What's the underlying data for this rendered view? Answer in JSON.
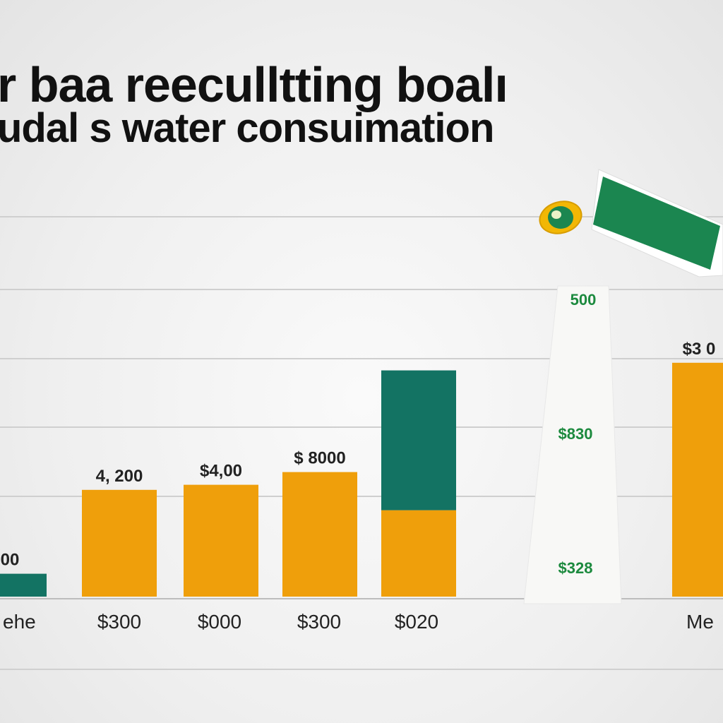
{
  "title": {
    "line1": "r baa reeculltting boalı",
    "line2": "udal s water consuimation"
  },
  "colors": {
    "primary": "#ef9f0b",
    "secondary": "#137363",
    "accent_green": "#1b8650",
    "label_green": "#1c8a3e",
    "grid": "#cfcfcf",
    "text": "#222222"
  },
  "icons": {
    "marker": "leaf-badge-icon",
    "flag": "green-flag-icon"
  },
  "chart_data": {
    "type": "bar",
    "categories": [
      "ehe",
      "$300",
      "$000",
      "$300",
      "$020",
      "Me"
    ],
    "series": [
      {
        "values": [
          0,
          2100,
          2200,
          2450,
          1700,
          4600
        ]
      },
      {
        "values": [
          450,
          0,
          0,
          0,
          2750,
          0
        ]
      }
    ],
    "data_labels": [
      "00",
      "4, 200",
      "$4,00",
      "$ 8000",
      "",
      "$3 0"
    ],
    "card_labels": [
      "500",
      "$830",
      "$328"
    ],
    "ylim": [
      0,
      7500
    ],
    "grid": true,
    "legend": "none"
  }
}
